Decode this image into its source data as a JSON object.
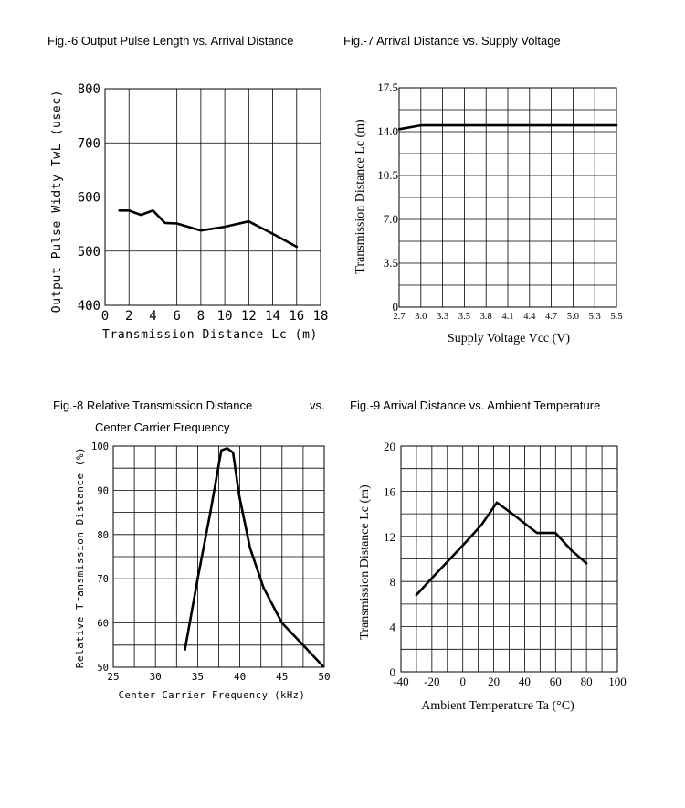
{
  "chart_data": [
    {
      "id": "fig6",
      "type": "line",
      "title": "Fig.-6 Output Pulse Length vs. Arrival Distance",
      "xlabel": "Transmission Distance Lc (m)",
      "ylabel": "Output Pulse Widty TwL (usec)",
      "xlim": [
        0,
        18
      ],
      "ylim": [
        400,
        800
      ],
      "x_ticks": [
        "0",
        "2",
        "4",
        "6",
        "8",
        "10",
        "12",
        "14",
        "16",
        "18"
      ],
      "y_ticks": [
        "400",
        "500",
        "600",
        "700",
        "800"
      ],
      "grid": true,
      "series": [
        {
          "x": [
            1.2,
            2,
            3,
            4,
            5,
            6,
            8,
            10,
            12,
            14,
            16
          ],
          "values": [
            575,
            575,
            567,
            575,
            552,
            551,
            538,
            545,
            555,
            532,
            508
          ]
        }
      ]
    },
    {
      "id": "fig7",
      "type": "line",
      "title": "Fig.-7 Arrival Distance vs. Supply Voltage",
      "xlabel": "Supply Voltage Vcc (V)",
      "ylabel": "Transmission Distance Lc (m)",
      "x_ticks": [
        "2.7",
        "3.0",
        "3.3",
        "3.5",
        "3.8",
        "4.1",
        "4.4",
        "4.7",
        "5.0",
        "5.3",
        "5.5"
      ],
      "y_ticks": [
        "0",
        "3.5",
        "7.0",
        "10.5",
        "14.0",
        "17.5"
      ],
      "ylim": [
        0,
        17.5
      ],
      "grid": true,
      "series": [
        {
          "x": [
            "2.7",
            "3.0",
            "3.3",
            "3.5",
            "3.8",
            "4.1",
            "4.4",
            "4.7",
            "5.0",
            "5.3",
            "5.5"
          ],
          "values": [
            14.2,
            14.5,
            14.5,
            14.5,
            14.5,
            14.5,
            14.5,
            14.5,
            14.5,
            14.5,
            14.5
          ]
        }
      ]
    },
    {
      "id": "fig8",
      "type": "line",
      "title": "Fig.-8 Relative Transmission Distance",
      "title_vs": "vs.",
      "subtitle": "Center Carrier Frequency",
      "xlabel": "Center Carrier Frequency (kHz)",
      "ylabel": "Relative Transmission Distance (%)",
      "xlim": [
        25,
        50
      ],
      "ylim": [
        50,
        100
      ],
      "x_ticks": [
        "25",
        "30",
        "35",
        "40",
        "45",
        "50"
      ],
      "y_ticks": [
        "50",
        "60",
        "70",
        "80",
        "90",
        "100"
      ],
      "grid": true,
      "series": [
        {
          "x": [
            33.5,
            35,
            36.5,
            37.8,
            38.5,
            39.2,
            39.9,
            41.2,
            42.8,
            45,
            47.5,
            49.8
          ],
          "values": [
            54,
            70,
            85,
            99,
            99.5,
            98.5,
            89,
            77,
            68,
            60,
            55,
            50.3
          ]
        }
      ]
    },
    {
      "id": "fig9",
      "type": "line",
      "title": "Fig.-9 Arrival Distance vs. Ambient Temperature",
      "xlabel": "Ambient Temperature Ta (°C)",
      "ylabel": "Transmission Distance Lc (m)",
      "xlim": [
        -40,
        100
      ],
      "ylim": [
        0,
        20
      ],
      "x_ticks": [
        "-40",
        "-20",
        "0",
        "20",
        "40",
        "60",
        "80",
        "100"
      ],
      "y_ticks": [
        "0",
        "4",
        "8",
        "12",
        "16",
        "20"
      ],
      "grid": true,
      "series": [
        {
          "x": [
            -30,
            -20,
            0,
            12,
            22,
            32,
            48,
            60,
            70,
            80
          ],
          "values": [
            6.8,
            8.3,
            11.2,
            13,
            15,
            14,
            12.3,
            12.3,
            10.8,
            9.6
          ]
        }
      ]
    }
  ]
}
